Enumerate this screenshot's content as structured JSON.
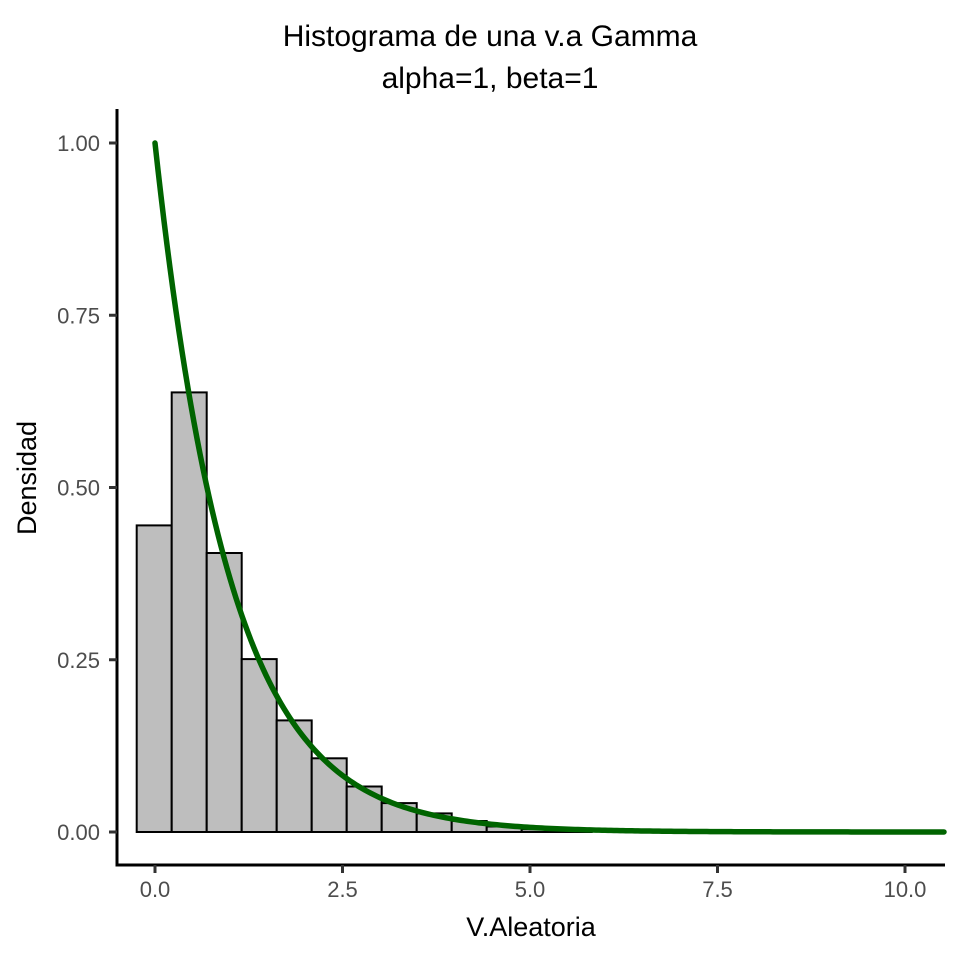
{
  "chart_data": {
    "type": "bar",
    "subtype": "histogram-with-density-curve",
    "title": "Histograma de una v.a Gamma",
    "subtitle": "alpha=1, beta=1",
    "xlabel": "V.Aleatoria",
    "ylabel": "Densidad",
    "x_ticks": [
      0.0,
      2.5,
      5.0,
      7.5,
      10.0
    ],
    "x_tick_labels": [
      "0.0",
      "2.5",
      "5.0",
      "7.5",
      "10.0"
    ],
    "y_ticks": [
      0.0,
      0.25,
      0.5,
      0.75,
      1.0
    ],
    "y_tick_labels": [
      "0.00",
      "0.25",
      "0.50",
      "0.75",
      "1.00"
    ],
    "xlim": [
      -0.51,
      10.53
    ],
    "ylim": [
      -0.048,
      1.05
    ],
    "grid": "off",
    "legend": "none",
    "histogram": {
      "bin_start": -0.244,
      "bin_width": 0.4667,
      "densities": [
        0.445,
        0.638,
        0.405,
        0.251,
        0.162,
        0.107,
        0.066,
        0.042,
        0.027,
        0.016,
        0.008,
        0.004,
        0.0015
      ],
      "fill_color": "#BEBEBE",
      "stroke_color": "#000000"
    },
    "curve": {
      "name": "gamma-pdf",
      "expression": "exp(-x)",
      "alpha": 1,
      "beta": 1,
      "x_range": [
        0,
        10.53
      ],
      "color": "#006400"
    },
    "colors": {
      "axis_line": "#000000",
      "tick_mark": "#333333",
      "tick_text": "#4d4d4d",
      "title_text": "#000000",
      "background": "#ffffff"
    }
  }
}
